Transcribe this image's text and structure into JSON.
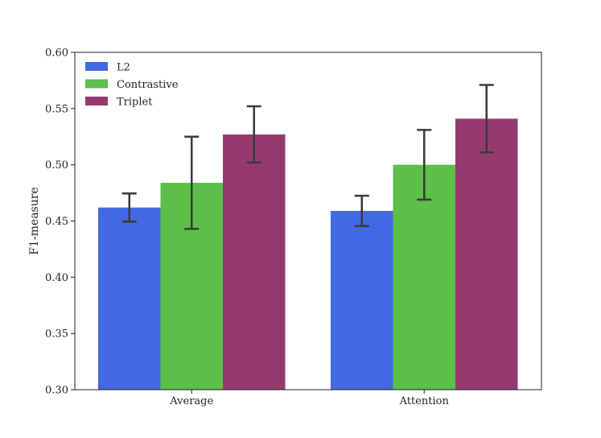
{
  "chart_data": {
    "type": "bar",
    "title": "",
    "xlabel": "",
    "ylabel": "F1-measure",
    "ylim": [
      0.3,
      0.6
    ],
    "yticks": [
      "0.30",
      "0.35",
      "0.40",
      "0.45",
      "0.50",
      "0.55",
      "0.60"
    ],
    "categories": [
      "Average",
      "Attention"
    ],
    "series": [
      {
        "name": "L2",
        "color": "#4169e1",
        "values": [
          0.462,
          0.459
        ],
        "errors": [
          0.0125,
          0.0135
        ]
      },
      {
        "name": "Contrastive",
        "color": "#5cbf48",
        "values": [
          0.484,
          0.5
        ],
        "errors": [
          0.041,
          0.031
        ]
      },
      {
        "name": "Triplet",
        "color": "#963a6e",
        "values": [
          0.527,
          0.541
        ],
        "errors": [
          0.025,
          0.03
        ]
      }
    ],
    "legend_position": "top-left",
    "grid": false
  }
}
